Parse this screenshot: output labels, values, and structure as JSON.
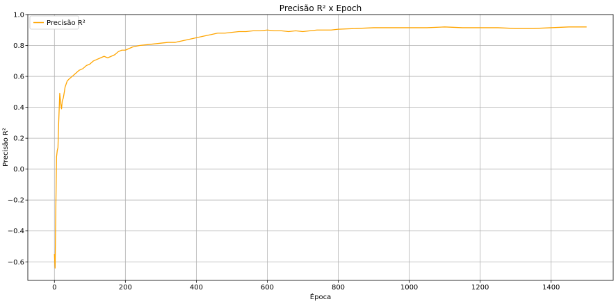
{
  "chart_data": {
    "type": "line",
    "title": "Precisão R² x Epoch",
    "xlabel": "Época",
    "ylabel": "Precisão R²",
    "xlim": [
      -75,
      1575
    ],
    "ylim": [
      -0.72,
      1.0
    ],
    "xticks": [
      0,
      200,
      400,
      600,
      800,
      1000,
      1200,
      1400
    ],
    "yticks": [
      -0.6,
      -0.4,
      -0.2,
      0.0,
      0.2,
      0.4,
      0.6,
      0.8,
      1.0
    ],
    "xtick_labels": [
      "0",
      "200",
      "400",
      "600",
      "800",
      "1000",
      "1200",
      "1400"
    ],
    "ytick_labels": [
      "−0.6",
      "−0.4",
      "−0.2",
      "0.0",
      "0.2",
      "0.4",
      "0.6",
      "0.8",
      "1.0"
    ],
    "grid": true,
    "legend_position": "top-left",
    "series": [
      {
        "name": "Precisão R²",
        "color": "#FFA500",
        "x": [
          0,
          2,
          4,
          6,
          8,
          10,
          12,
          15,
          18,
          20,
          22,
          25,
          28,
          30,
          33,
          36,
          40,
          45,
          50,
          55,
          60,
          70,
          80,
          90,
          100,
          110,
          120,
          130,
          140,
          150,
          160,
          170,
          180,
          190,
          200,
          220,
          240,
          260,
          280,
          300,
          320,
          340,
          360,
          380,
          400,
          420,
          440,
          460,
          480,
          500,
          520,
          540,
          560,
          580,
          600,
          620,
          640,
          660,
          680,
          700,
          720,
          740,
          760,
          780,
          800,
          850,
          900,
          950,
          1000,
          1050,
          1100,
          1150,
          1200,
          1250,
          1300,
          1350,
          1400,
          1450,
          1500
        ],
        "y": [
          -0.55,
          -0.64,
          -0.25,
          0.08,
          0.12,
          0.14,
          0.3,
          0.49,
          0.42,
          0.39,
          0.44,
          0.46,
          0.5,
          0.53,
          0.55,
          0.57,
          0.58,
          0.59,
          0.6,
          0.61,
          0.62,
          0.64,
          0.65,
          0.67,
          0.68,
          0.7,
          0.71,
          0.72,
          0.73,
          0.72,
          0.73,
          0.74,
          0.76,
          0.77,
          0.77,
          0.79,
          0.8,
          0.805,
          0.81,
          0.815,
          0.82,
          0.82,
          0.83,
          0.84,
          0.85,
          0.86,
          0.87,
          0.88,
          0.88,
          0.885,
          0.89,
          0.89,
          0.895,
          0.895,
          0.9,
          0.895,
          0.895,
          0.89,
          0.895,
          0.89,
          0.895,
          0.9,
          0.9,
          0.9,
          0.905,
          0.91,
          0.915,
          0.915,
          0.915,
          0.915,
          0.92,
          0.915,
          0.915,
          0.915,
          0.91,
          0.91,
          0.915,
          0.92,
          0.92
        ]
      }
    ]
  }
}
